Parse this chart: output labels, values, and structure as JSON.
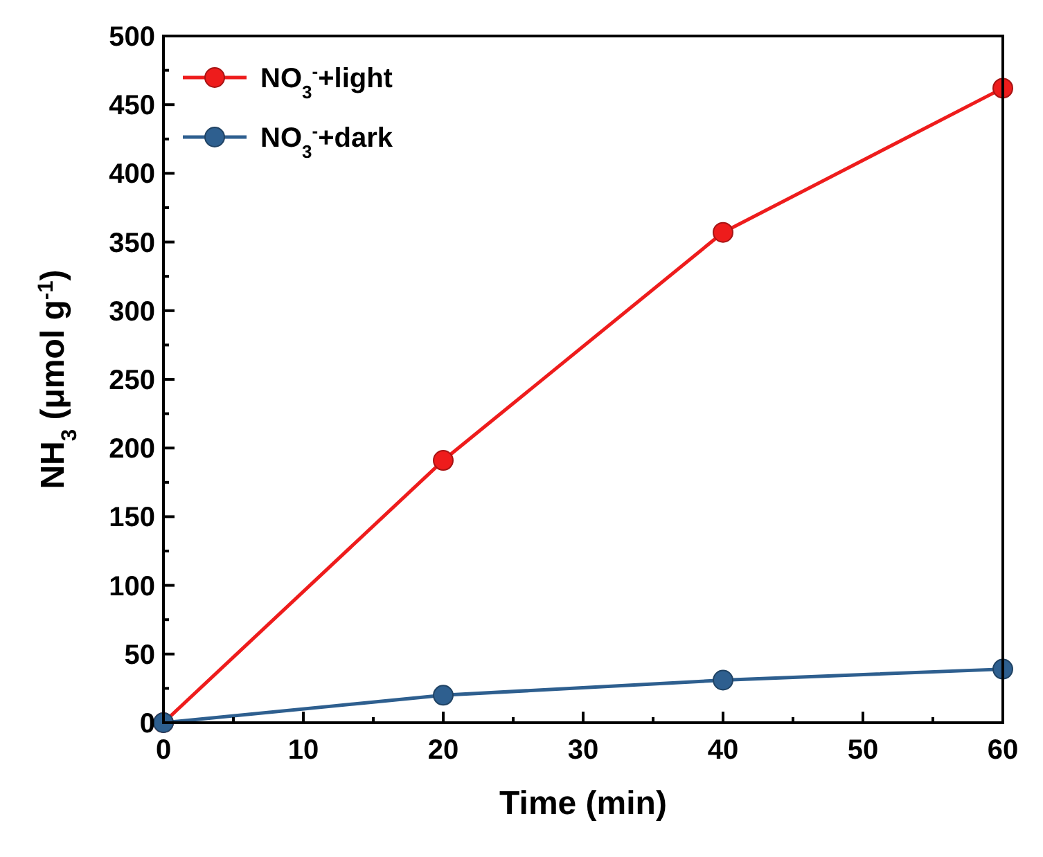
{
  "chart_data": {
    "type": "line",
    "xlabel": "Time (min)",
    "ylabel": "NH$_{3}$ (μmol g$^{-1}$)",
    "x": [
      0,
      20,
      40,
      60
    ],
    "series": [
      {
        "name": "NO$_{3}$$^{-}$+light",
        "color": "#ee1c1c",
        "values": [
          0,
          191,
          357,
          462
        ]
      },
      {
        "name": "NO$_{3}$$^{-}$+dark",
        "color": "#2e5f8f",
        "values": [
          0,
          20,
          31,
          39
        ]
      }
    ],
    "xlim": [
      0,
      60
    ],
    "xticks": [
      0,
      {
        "value": 5,
        "label": null
      },
      10,
      {
        "value": 15,
        "label": null
      },
      20,
      {
        "value": 25,
        "label": null
      },
      30,
      {
        "value": 35,
        "label": null
      },
      40,
      {
        "value": 45,
        "label": null
      },
      50,
      {
        "value": 55,
        "label": null
      },
      60
    ],
    "ylim": [
      0,
      500
    ],
    "yticks": [
      0,
      {
        "value": 25,
        "label": null
      },
      50,
      {
        "value": 75,
        "label": null
      },
      100,
      {
        "value": 125,
        "label": null
      },
      150,
      {
        "value": 175,
        "label": null
      },
      200,
      {
        "value": 225,
        "label": null
      },
      250,
      {
        "value": 275,
        "label": null
      },
      300,
      {
        "value": 325,
        "label": null
      },
      350,
      {
        "value": 375,
        "label": null
      },
      400,
      {
        "value": 425,
        "label": null
      },
      450,
      {
        "value": 475,
        "label": null
      },
      500
    ],
    "grid": false,
    "legend": "top left",
    "marker": "circle",
    "line_style": "solid"
  }
}
